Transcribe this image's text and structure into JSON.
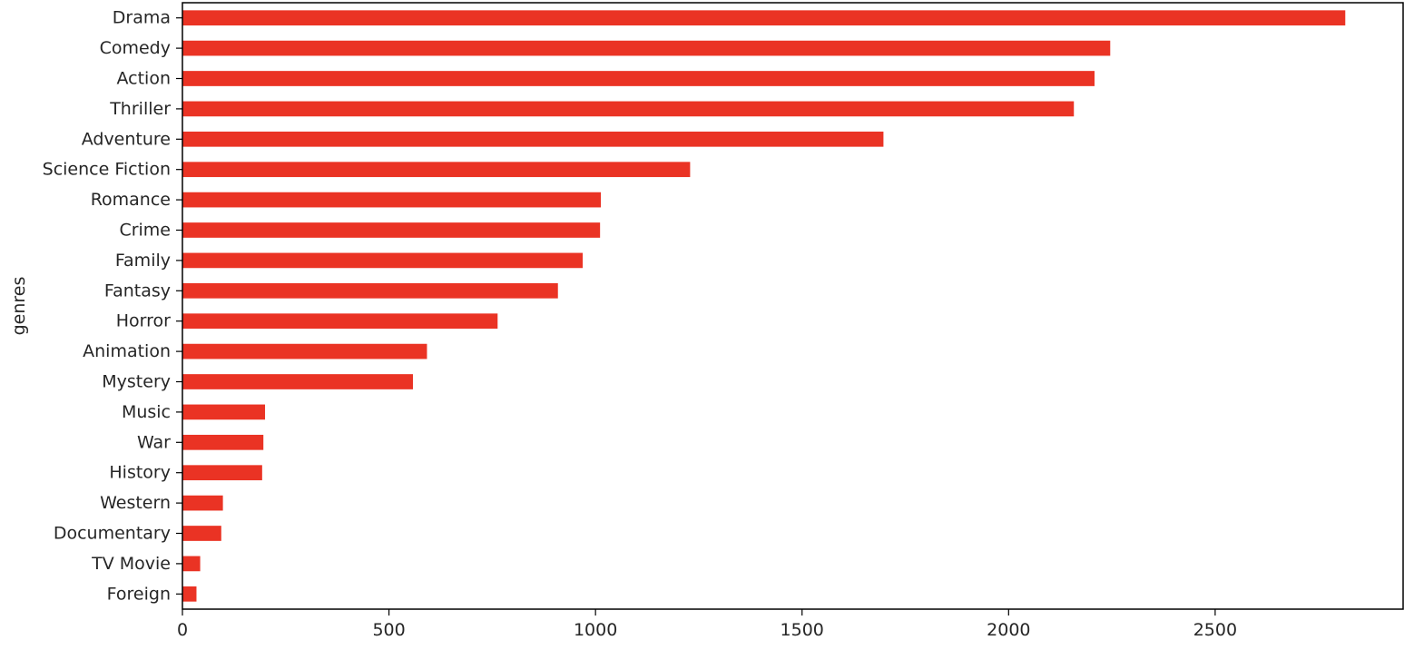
{
  "chart_data": {
    "type": "bar",
    "orientation": "horizontal",
    "ylabel": "genres",
    "xlabel": "",
    "categories": [
      "Drama",
      "Comedy",
      "Action",
      "Thriller",
      "Adventure",
      "Science Fiction",
      "Romance",
      "Crime",
      "Family",
      "Fantasy",
      "Horror",
      "Animation",
      "Mystery",
      "Music",
      "War",
      "History",
      "Western",
      "Documentary",
      "TV Movie",
      "Foreign"
    ],
    "values": [
      2815,
      2246,
      2208,
      2158,
      1697,
      1229,
      1013,
      1011,
      969,
      909,
      763,
      592,
      558,
      200,
      196,
      193,
      98,
      94,
      43,
      34
    ],
    "xlim": [
      0,
      2955
    ],
    "xticks": [
      0,
      500,
      1000,
      1500,
      2000,
      2500
    ],
    "bar_color": "#ea3324",
    "grid": false,
    "legend": "none"
  }
}
